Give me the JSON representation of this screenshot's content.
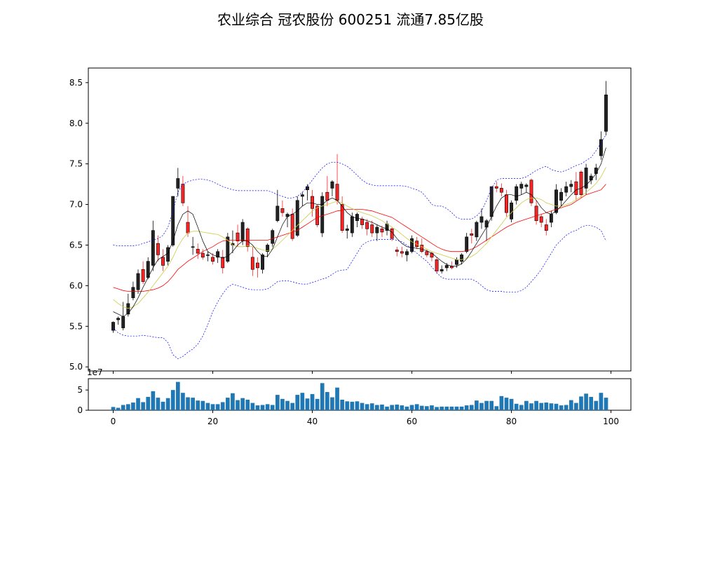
{
  "title": "农业综合 冠农股份 600251 流通7.85亿股",
  "chart_data": [
    {
      "type": "candlestick",
      "title": "农业综合 冠农股份 600251 流通7.85亿股",
      "ylim": [
        4.95,
        8.68
      ],
      "xlim": [
        -5,
        104
      ],
      "yticks": [
        "5.0",
        "5.5",
        "6.0",
        "6.5",
        "7.0",
        "7.5",
        "8.0",
        "8.5"
      ],
      "colors": {
        "up": "#000000",
        "down": "#ff2222",
        "ma_short": "#000000",
        "ma_mid": "#cccc44",
        "ma_long": "#ff0000",
        "boll": "#0000ff",
        "volume": "#1f77b4"
      },
      "ohlc": [
        [
          0,
          5.45,
          5.56,
          5.42,
          5.55
        ],
        [
          1,
          5.58,
          5.62,
          5.52,
          5.6
        ],
        [
          2,
          5.48,
          5.8,
          5.45,
          5.62
        ],
        [
          3,
          5.65,
          5.9,
          5.62,
          5.78
        ],
        [
          4,
          5.85,
          6.05,
          5.82,
          5.98
        ],
        [
          5,
          5.95,
          6.2,
          5.9,
          6.15
        ],
        [
          6,
          6.2,
          6.3,
          6.02,
          6.05
        ],
        [
          7,
          6.1,
          6.35,
          6.08,
          6.3
        ],
        [
          8,
          6.25,
          6.8,
          6.18,
          6.68
        ],
        [
          9,
          6.52,
          6.62,
          6.3,
          6.38
        ],
        [
          10,
          6.35,
          6.45,
          6.18,
          6.25
        ],
        [
          11,
          6.3,
          6.5,
          6.25,
          6.47
        ],
        [
          12,
          6.5,
          7.1,
          6.48,
          7.1
        ],
        [
          13,
          7.2,
          7.45,
          7.1,
          7.32
        ],
        [
          14,
          7.25,
          7.35,
          6.98,
          7.02
        ],
        [
          15,
          6.78,
          6.98,
          6.6,
          6.65
        ],
        [
          16,
          6.48,
          6.6,
          6.38,
          6.48
        ],
        [
          17,
          6.45,
          6.52,
          6.33,
          6.4
        ],
        [
          18,
          6.4,
          6.45,
          6.32,
          6.35
        ],
        [
          19,
          6.38,
          6.42,
          6.3,
          6.38
        ],
        [
          20,
          6.35,
          6.4,
          6.26,
          6.3
        ],
        [
          21,
          6.35,
          6.45,
          6.28,
          6.42
        ],
        [
          22,
          6.35,
          6.44,
          6.15,
          6.22
        ],
        [
          23,
          6.3,
          6.65,
          6.28,
          6.6
        ],
        [
          24,
          6.5,
          6.68,
          6.4,
          6.52
        ],
        [
          25,
          6.65,
          6.75,
          6.48,
          6.55
        ],
        [
          26,
          6.55,
          6.82,
          6.5,
          6.78
        ],
        [
          27,
          6.7,
          6.72,
          6.42,
          6.48
        ],
        [
          28,
          6.35,
          6.48,
          6.12,
          6.2
        ],
        [
          29,
          6.28,
          6.35,
          6.1,
          6.22
        ],
        [
          30,
          6.2,
          6.4,
          6.15,
          6.38
        ],
        [
          31,
          6.42,
          6.52,
          6.35,
          6.5
        ],
        [
          32,
          6.52,
          6.7,
          6.48,
          6.68
        ],
        [
          33,
          6.8,
          7.18,
          6.78,
          6.98
        ],
        [
          34,
          6.95,
          7.05,
          6.85,
          6.9
        ],
        [
          35,
          6.85,
          6.9,
          6.72,
          6.88
        ],
        [
          36,
          6.88,
          6.95,
          6.55,
          6.58
        ],
        [
          37,
          6.62,
          7.1,
          6.6,
          7.05
        ],
        [
          38,
          7.1,
          7.15,
          6.98,
          7.12
        ],
        [
          39,
          7.18,
          7.25,
          7.05,
          7.22
        ],
        [
          40,
          7.1,
          7.18,
          6.85,
          6.95
        ],
        [
          41,
          6.98,
          7.0,
          6.72,
          6.75
        ],
        [
          42,
          6.65,
          7.15,
          6.6,
          7.1
        ],
        [
          43,
          7.15,
          7.35,
          6.98,
          7.05
        ],
        [
          44,
          7.2,
          7.3,
          7.1,
          7.28
        ],
        [
          45,
          7.25,
          7.62,
          7.0,
          7.05
        ],
        [
          46,
          7.0,
          7.1,
          6.65,
          6.68
        ],
        [
          47,
          6.68,
          6.75,
          6.58,
          6.7
        ],
        [
          48,
          6.65,
          6.9,
          6.6,
          6.85
        ],
        [
          49,
          6.8,
          6.9,
          6.72,
          6.88
        ],
        [
          50,
          6.82,
          6.85,
          6.7,
          6.75
        ],
        [
          51,
          6.78,
          6.82,
          6.62,
          6.7
        ],
        [
          52,
          6.75,
          6.8,
          6.6,
          6.65
        ],
        [
          53,
          6.65,
          6.75,
          6.55,
          6.72
        ],
        [
          54,
          6.7,
          6.74,
          6.6,
          6.66
        ],
        [
          55,
          6.68,
          6.8,
          6.62,
          6.76
        ],
        [
          56,
          6.7,
          6.72,
          6.55,
          6.58
        ],
        [
          57,
          6.44,
          6.48,
          6.36,
          6.42
        ],
        [
          58,
          6.42,
          6.48,
          6.35,
          6.4
        ],
        [
          59,
          6.38,
          6.45,
          6.3,
          6.42
        ],
        [
          60,
          6.42,
          6.62,
          6.4,
          6.58
        ],
        [
          61,
          6.55,
          6.6,
          6.45,
          6.48
        ],
        [
          62,
          6.5,
          6.58,
          6.4,
          6.42
        ],
        [
          63,
          6.42,
          6.45,
          6.35,
          6.38
        ],
        [
          64,
          6.4,
          6.42,
          6.3,
          6.35
        ],
        [
          65,
          6.32,
          6.35,
          6.15,
          6.18
        ],
        [
          66,
          6.18,
          6.25,
          6.15,
          6.2
        ],
        [
          67,
          6.22,
          6.28,
          6.18,
          6.25
        ],
        [
          68,
          6.24,
          6.3,
          6.2,
          6.22
        ],
        [
          69,
          6.26,
          6.35,
          6.22,
          6.32
        ],
        [
          70,
          6.3,
          6.4,
          6.26,
          6.38
        ],
        [
          71,
          6.42,
          6.65,
          6.4,
          6.6
        ],
        [
          72,
          6.64,
          6.7,
          6.52,
          6.62
        ],
        [
          73,
          6.6,
          6.8,
          6.55,
          6.78
        ],
        [
          74,
          6.78,
          6.95,
          6.7,
          6.85
        ],
        [
          75,
          6.72,
          6.82,
          6.55,
          6.8
        ],
        [
          76,
          6.85,
          7.22,
          6.8,
          7.22
        ],
        [
          77,
          7.22,
          7.28,
          7.15,
          7.2
        ],
        [
          78,
          7.2,
          7.26,
          7.1,
          7.15
        ],
        [
          79,
          7.12,
          7.18,
          6.85,
          6.9
        ],
        [
          80,
          6.82,
          7.05,
          6.78,
          7.02
        ],
        [
          81,
          7.05,
          7.25,
          7.0,
          7.22
        ],
        [
          82,
          7.2,
          7.28,
          7.12,
          7.25
        ],
        [
          83,
          7.22,
          7.26,
          7.15,
          7.24
        ],
        [
          84,
          7.3,
          7.32,
          6.98,
          7.02
        ],
        [
          85,
          6.98,
          7.05,
          6.75,
          6.8
        ],
        [
          86,
          6.85,
          6.88,
          6.72,
          6.78
        ],
        [
          87,
          6.75,
          6.82,
          6.62,
          6.68
        ],
        [
          88,
          6.78,
          6.92,
          6.72,
          6.88
        ],
        [
          89,
          6.9,
          7.25,
          6.88,
          7.18
        ],
        [
          90,
          7.05,
          7.2,
          6.98,
          7.15
        ],
        [
          91,
          7.15,
          7.28,
          7.1,
          7.22
        ],
        [
          92,
          7.22,
          7.3,
          7.15,
          7.25
        ],
        [
          93,
          7.28,
          7.4,
          7.05,
          7.12
        ],
        [
          94,
          7.4,
          7.42,
          7.08,
          7.12
        ],
        [
          95,
          7.2,
          7.5,
          7.12,
          7.45
        ],
        [
          96,
          7.3,
          7.38,
          7.25,
          7.35
        ],
        [
          97,
          7.38,
          7.5,
          7.3,
          7.45
        ],
        [
          98,
          7.6,
          7.9,
          7.55,
          7.8
        ],
        [
          99,
          7.9,
          8.52,
          7.85,
          8.35
        ]
      ],
      "ma_short": [
        5.68,
        5.65,
        5.62,
        5.66,
        5.74,
        5.85,
        5.98,
        6.1,
        6.22,
        6.32,
        6.36,
        6.4,
        6.55,
        6.75,
        6.88,
        6.92,
        6.88,
        6.72,
        6.55,
        6.42,
        6.38,
        6.36,
        6.34,
        6.36,
        6.42,
        6.5,
        6.55,
        6.55,
        6.5,
        6.42,
        6.36,
        6.36,
        6.45,
        6.6,
        6.75,
        6.85,
        6.88,
        6.92,
        6.98,
        7.02,
        7.02,
        7.0,
        7.0,
        7.05,
        7.08,
        7.05,
        6.98,
        6.9,
        6.85,
        6.83,
        6.82,
        6.8,
        6.78,
        6.75,
        6.72,
        6.7,
        6.66,
        6.58,
        6.52,
        6.48,
        6.47,
        6.46,
        6.45,
        6.43,
        6.4,
        6.35,
        6.3,
        6.26,
        6.24,
        6.24,
        6.27,
        6.33,
        6.42,
        6.52,
        6.62,
        6.72,
        6.85,
        6.98,
        7.08,
        7.12,
        7.12,
        7.1,
        7.12,
        7.15,
        7.12,
        7.05,
        6.96,
        6.9,
        6.88,
        6.92,
        6.98,
        7.05,
        7.12,
        7.18,
        7.2,
        7.24,
        7.3,
        7.38,
        7.5,
        7.7
      ],
      "ma_mid": [
        5.83,
        5.78,
        5.74,
        5.72,
        5.74,
        5.78,
        5.85,
        5.92,
        6.0,
        6.08,
        6.16,
        6.24,
        6.35,
        6.48,
        6.58,
        6.65,
        6.67,
        6.67,
        6.66,
        6.65,
        6.64,
        6.63,
        6.6,
        6.56,
        6.5,
        6.48,
        6.48,
        6.49,
        6.48,
        6.46,
        6.44,
        6.43,
        6.45,
        6.5,
        6.56,
        6.62,
        6.68,
        6.74,
        6.8,
        6.86,
        6.92,
        6.96,
        6.98,
        7.0,
        7.02,
        7.04,
        7.02,
        6.98,
        6.95,
        6.92,
        6.9,
        6.88,
        6.86,
        6.83,
        6.8,
        6.76,
        6.72,
        6.68,
        6.63,
        6.58,
        6.54,
        6.51,
        6.48,
        6.45,
        6.42,
        6.4,
        6.38,
        6.36,
        6.34,
        6.32,
        6.32,
        6.34,
        6.36,
        6.4,
        6.46,
        6.52,
        6.6,
        6.68,
        6.76,
        6.84,
        6.9,
        6.96,
        7.02,
        7.06,
        7.08,
        7.08,
        7.06,
        7.02,
        7.0,
        6.98,
        6.98,
        7.0,
        7.02,
        7.06,
        7.1,
        7.15,
        7.2,
        7.26,
        7.34,
        7.46
      ],
      "ma_long": [
        5.98,
        5.96,
        5.94,
        5.93,
        5.93,
        5.93,
        5.93,
        5.94,
        5.95,
        5.97,
        6.0,
        6.05,
        6.12,
        6.2,
        6.25,
        6.3,
        6.34,
        6.38,
        6.42,
        6.45,
        6.48,
        6.52,
        6.55,
        6.56,
        6.56,
        6.56,
        6.56,
        6.56,
        6.56,
        6.56,
        6.56,
        6.56,
        6.58,
        6.6,
        6.62,
        6.64,
        6.66,
        6.68,
        6.72,
        6.76,
        6.8,
        6.84,
        6.86,
        6.88,
        6.9,
        6.92,
        6.93,
        6.94,
        6.94,
        6.94,
        6.94,
        6.93,
        6.92,
        6.9,
        6.88,
        6.86,
        6.84,
        6.8,
        6.76,
        6.72,
        6.68,
        6.64,
        6.6,
        6.56,
        6.52,
        6.48,
        6.45,
        6.43,
        6.42,
        6.42,
        6.42,
        6.43,
        6.45,
        6.48,
        6.52,
        6.56,
        6.6,
        6.64,
        6.68,
        6.72,
        6.75,
        6.78,
        6.8,
        6.82,
        6.84,
        6.86,
        6.88,
        6.9,
        6.92,
        6.94,
        6.96,
        6.98,
        7.0,
        7.04,
        7.08,
        7.12,
        7.14,
        7.16,
        7.18,
        7.25
      ],
      "boll_upper": [
        6.5,
        6.49,
        6.49,
        6.49,
        6.49,
        6.5,
        6.52,
        6.54,
        6.56,
        6.58,
        6.62,
        6.72,
        6.92,
        7.15,
        7.25,
        7.28,
        7.3,
        7.31,
        7.31,
        7.3,
        7.28,
        7.25,
        7.22,
        7.2,
        7.18,
        7.17,
        7.17,
        7.17,
        7.17,
        7.17,
        7.17,
        7.17,
        7.15,
        7.12,
        7.1,
        7.08,
        7.08,
        7.1,
        7.15,
        7.22,
        7.3,
        7.38,
        7.45,
        7.5,
        7.52,
        7.52,
        7.5,
        7.47,
        7.42,
        7.36,
        7.3,
        7.26,
        7.24,
        7.23,
        7.23,
        7.23,
        7.23,
        7.23,
        7.23,
        7.22,
        7.2,
        7.18,
        7.15,
        7.08,
        7.0,
        6.98,
        6.98,
        6.95,
        6.9,
        6.84,
        6.82,
        6.82,
        6.82,
        6.86,
        6.92,
        7.05,
        7.2,
        7.3,
        7.32,
        7.32,
        7.32,
        7.32,
        7.32,
        7.34,
        7.38,
        7.42,
        7.45,
        7.47,
        7.43,
        7.41,
        7.4,
        7.42,
        7.45,
        7.48,
        7.5,
        7.54,
        7.58,
        7.66,
        7.76,
        7.86
      ],
      "boll_lower": [
        5.48,
        5.42,
        5.39,
        5.38,
        5.38,
        5.38,
        5.39,
        5.38,
        5.37,
        5.36,
        5.36,
        5.3,
        5.15,
        5.1,
        5.13,
        5.18,
        5.22,
        5.28,
        5.38,
        5.52,
        5.68,
        5.8,
        5.9,
        5.98,
        6.02,
        6.0,
        5.98,
        5.96,
        5.95,
        5.95,
        5.95,
        5.96,
        6.0,
        6.05,
        6.06,
        6.06,
        6.05,
        6.03,
        6.02,
        6.02,
        6.04,
        6.06,
        6.08,
        6.1,
        6.14,
        6.18,
        6.19,
        6.2,
        6.3,
        6.4,
        6.5,
        6.54,
        6.56,
        6.57,
        6.57,
        6.57,
        6.57,
        6.56,
        6.54,
        6.5,
        6.45,
        6.4,
        6.35,
        6.3,
        6.23,
        6.16,
        6.1,
        6.08,
        6.08,
        6.08,
        6.08,
        6.08,
        6.08,
        6.05,
        6.0,
        5.95,
        5.93,
        5.93,
        5.93,
        5.92,
        5.92,
        5.92,
        5.94,
        5.98,
        6.05,
        6.12,
        6.2,
        6.3,
        6.4,
        6.5,
        6.56,
        6.62,
        6.66,
        6.68,
        6.72,
        6.74,
        6.74,
        6.72,
        6.68,
        6.55
      ]
    },
    {
      "type": "bar",
      "ylim": [
        0,
        7.8
      ],
      "yticks": [
        "0",
        "5"
      ],
      "exponent_label": "1e7",
      "xticks": [
        "0",
        "20",
        "40",
        "60",
        "80",
        "100"
      ],
      "xtick_values": [
        0,
        20,
        40,
        60,
        80,
        100
      ],
      "values": [
        0.8,
        0.6,
        1.3,
        1.5,
        1.9,
        3.0,
        2.0,
        3.3,
        4.7,
        3.1,
        2.1,
        3.0,
        5.0,
        7.0,
        4.3,
        3.2,
        3.1,
        2.4,
        2.3,
        1.8,
        1.5,
        1.5,
        2.0,
        3.1,
        4.2,
        2.5,
        3.0,
        2.6,
        1.8,
        1.2,
        1.3,
        1.5,
        1.3,
        3.8,
        2.8,
        2.3,
        1.8,
        3.8,
        4.3,
        2.9,
        4.0,
        2.8,
        6.7,
        4.5,
        3.2,
        5.6,
        2.6,
        2.2,
        2.1,
        2.2,
        1.8,
        1.5,
        1.7,
        1.3,
        1.4,
        0.9,
        1.3,
        1.4,
        1.2,
        0.9,
        1.3,
        1.5,
        1.1,
        1.0,
        1.2,
        0.8,
        0.9,
        0.9,
        0.9,
        0.9,
        0.9,
        1.2,
        1.3,
        2.4,
        1.8,
        2.3,
        2.3,
        1.0,
        3.5,
        3.1,
        2.8,
        1.6,
        1.3,
        2.3,
        1.7,
        2.3,
        1.8,
        1.9,
        1.7,
        1.6,
        1.2,
        1.3,
        2.5,
        1.8,
        3.4,
        4.1,
        3.3,
        2.3,
        4.3,
        3.1
      ]
    }
  ]
}
